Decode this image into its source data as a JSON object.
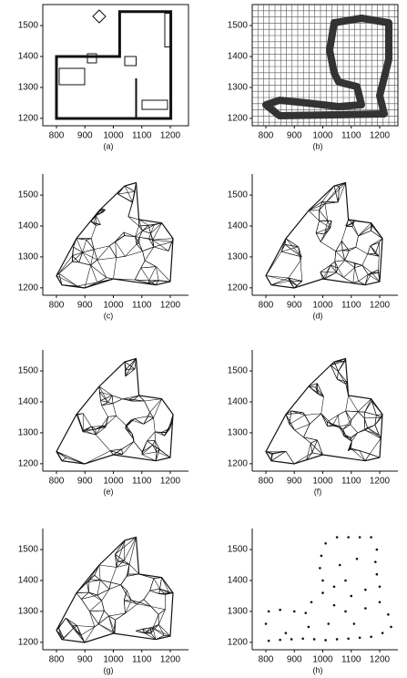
{
  "chart_data": [
    {
      "type": "floorplan",
      "label": "(a)",
      "xlim": [
        752,
        1264
      ],
      "ylim": [
        1176,
        1568
      ],
      "xticks": [
        800,
        900,
        1000,
        1100,
        1200
      ],
      "yticks": [
        1200,
        1300,
        1400,
        1500
      ]
    },
    {
      "type": "grid",
      "label": "(b)",
      "xlim": [
        752,
        1264
      ],
      "ylim": [
        1176,
        1568
      ],
      "xticks": [
        800,
        900,
        1000,
        1100,
        1200
      ],
      "yticks": [
        1200,
        1300,
        1400,
        1500
      ]
    },
    {
      "type": "mesh",
      "label": "(c)",
      "xlim": [
        752,
        1264
      ],
      "ylim": [
        1176,
        1568
      ],
      "xticks": [
        800,
        900,
        1000,
        1100,
        1200
      ],
      "yticks": [
        1200,
        1300,
        1400,
        1500
      ]
    },
    {
      "type": "mesh",
      "label": "(d)",
      "xlim": [
        752,
        1264
      ],
      "ylim": [
        1176,
        1568
      ],
      "xticks": [
        800,
        900,
        1000,
        1100,
        1200
      ],
      "yticks": [
        1200,
        1300,
        1400,
        1500
      ]
    },
    {
      "type": "mesh",
      "label": "(e)",
      "xlim": [
        752,
        1264
      ],
      "ylim": [
        1176,
        1568
      ],
      "xticks": [
        800,
        900,
        1000,
        1100,
        1200
      ],
      "yticks": [
        1200,
        1300,
        1400,
        1500
      ]
    },
    {
      "type": "mesh",
      "label": "(f)",
      "xlim": [
        752,
        1264
      ],
      "ylim": [
        1176,
        1568
      ],
      "xticks": [
        800,
        900,
        1000,
        1100,
        1200
      ],
      "yticks": [
        1200,
        1300,
        1400,
        1500
      ]
    },
    {
      "type": "mesh",
      "label": "(g)",
      "xlim": [
        752,
        1264
      ],
      "ylim": [
        1176,
        1568
      ],
      "xticks": [
        800,
        900,
        1000,
        1100,
        1200
      ],
      "yticks": [
        1200,
        1300,
        1400,
        1500
      ]
    },
    {
      "type": "scatter",
      "label": "(h)",
      "xlim": [
        752,
        1264
      ],
      "ylim": [
        1176,
        1568
      ],
      "xticks": [
        800,
        900,
        1000,
        1100,
        1200
      ],
      "yticks": [
        1200,
        1300,
        1400,
        1500
      ],
      "color": "#111111",
      "x": [
        810,
        850,
        890,
        930,
        970,
        1010,
        1050,
        1090,
        1130,
        1170,
        1210,
        800,
        810,
        850,
        900,
        940,
        960,
        1000,
        1040,
        1000,
        990,
        995,
        1010,
        1050,
        1090,
        1130,
        1170,
        1190,
        1185,
        1190,
        1200,
        1080,
        1100,
        1080,
        1110,
        1150,
        1200,
        1230,
        1240,
        1060,
        1120,
        870,
        1020,
        950,
        1150,
        1040
      ],
      "values": [
        1205,
        1208,
        1210,
        1212,
        1210,
        1207,
        1210,
        1212,
        1215,
        1218,
        1230,
        1260,
        1300,
        1305,
        1300,
        1295,
        1330,
        1360,
        1380,
        1400,
        1440,
        1480,
        1520,
        1540,
        1540,
        1540,
        1540,
        1500,
        1460,
        1420,
        1380,
        1400,
        1350,
        1300,
        1260,
        1310,
        1330,
        1290,
        1250,
        1450,
        1470,
        1230,
        1260,
        1250,
        1370,
        1320
      ]
    }
  ]
}
